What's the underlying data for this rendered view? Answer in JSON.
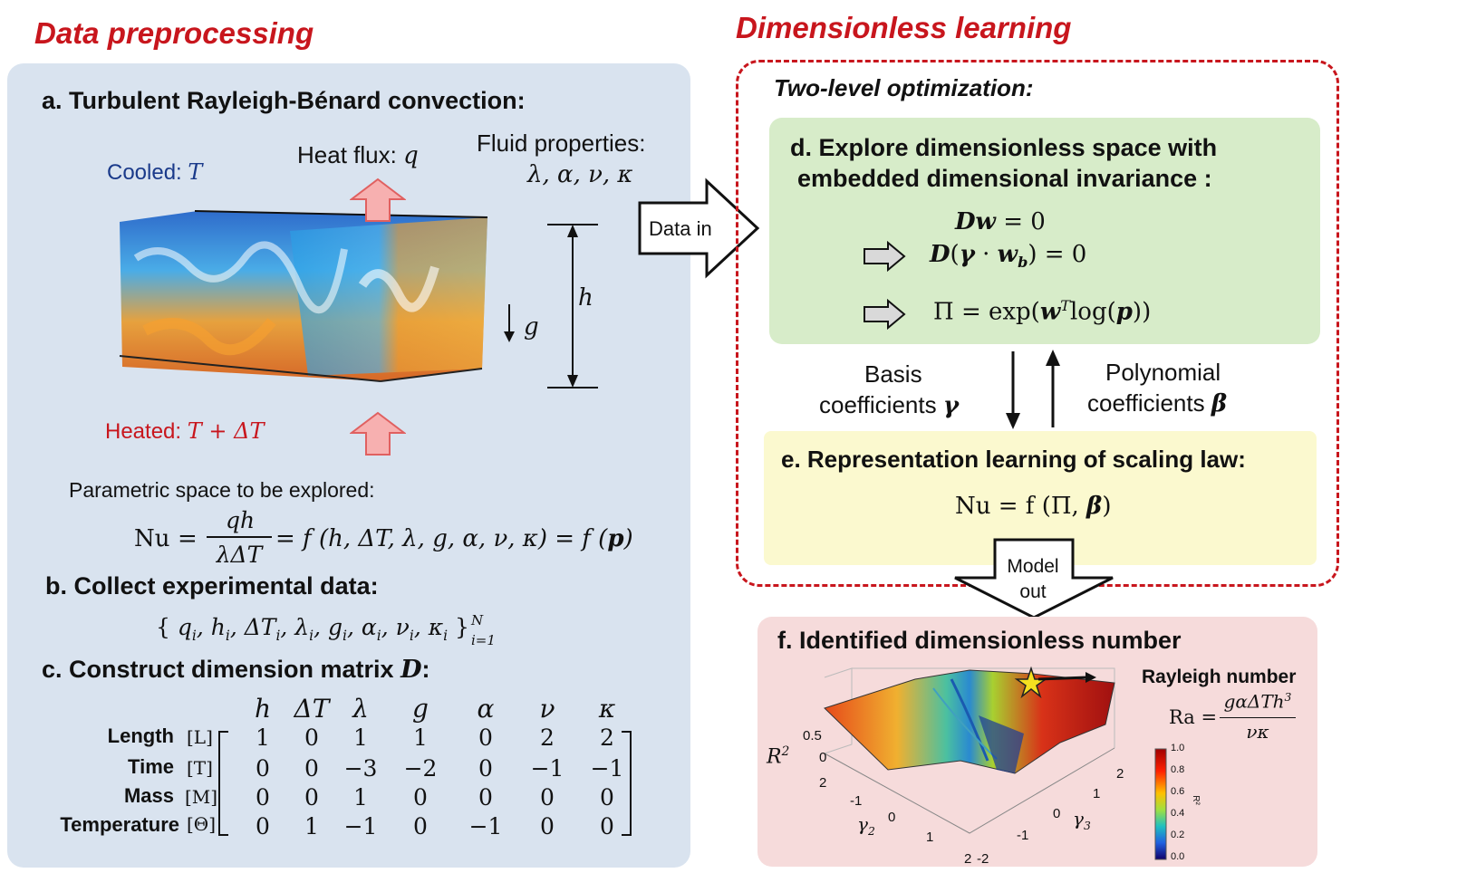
{
  "titles": {
    "left": "Data preprocessing",
    "right": "Dimensionless  learning",
    "two_level": "Two-level optimization:"
  },
  "panel_a": {
    "heading": "a. Turbulent Rayleigh-Bénard convection:",
    "cooled_label": "Cooled: ",
    "cooled_var": "T",
    "heat_flux_label": "Heat flux: ",
    "heat_flux_var": "q",
    "fluid_label": "Fluid properties:",
    "fluid_vars": "λ, α, ν, κ",
    "height_var": "h",
    "gravity_var": "g",
    "heated_label": "Heated: ",
    "heated_var": "T + ΔT",
    "param_label": "Parametric space to be explored:",
    "nu": "Nu",
    "num": "qh",
    "den": "λΔT",
    "rhs": "= f (h, ΔT, λ, g, α, ν, κ) = f (",
    "p": "p",
    ")": ")"
  },
  "panel_b": {
    "heading": "b. Collect experimental data:",
    "set_left": "{ ",
    "set_right": " }",
    "sub_label": "i=1",
    "sup_label": "N"
  },
  "panel_c": {
    "heading": "c. Construct dimension matrix ",
    "heading_var": "D",
    "heading_end": ":",
    "columns": [
      "h",
      "ΔT",
      "λ",
      "g",
      "α",
      "ν",
      "κ"
    ],
    "rows": [
      {
        "name": "Length",
        "unit": "[L]",
        "values": [
          "1",
          "0",
          "1",
          "1",
          "0",
          "2",
          "2"
        ]
      },
      {
        "name": "Time",
        "unit": "[T]",
        "values": [
          "0",
          "0",
          "−3",
          "−2",
          "0",
          "−1",
          "−1"
        ]
      },
      {
        "name": "Mass",
        "unit": "[M]",
        "values": [
          "0",
          "0",
          "1",
          "0",
          "0",
          "0",
          "0"
        ]
      },
      {
        "name": "Temperature",
        "unit": "[Θ]",
        "values": [
          "0",
          "1",
          "−1",
          "0",
          "−1",
          "0",
          "0"
        ]
      }
    ]
  },
  "arrows": {
    "data_in": "Data in",
    "model_out_1": "Model",
    "model_out_2": "out"
  },
  "panel_d": {
    "line1": "d. Explore dimensionless space with",
    "line2": "embedded dimensional invariance :",
    "eq1": "= 0",
    "eq2": "= 0",
    "eq3": "Π = exp(",
    "eq3_log": "log(",
    ")": "))"
  },
  "coefficients": {
    "basis_1": "Basis",
    "basis_2": "coefficients ",
    "basis_var": "γ",
    "poly_1": "Polynomial",
    "poly_2": "coefficients ",
    "poly_var": "β"
  },
  "panel_e": {
    "heading": "e. Representation learning of scaling law:",
    "eq": "Nu = f (Π, ",
    "eq_end": ")"
  },
  "panel_f": {
    "heading": "f. Identified dimensionless number",
    "rayleigh_label": "Rayleigh number",
    "ra": "Ra =",
    "ra_num": "gαΔTh",
    "ra_num_sup": "3",
    "ra_den": "νκ",
    "z_label": "R",
    "z_label_sup": "2",
    "z_ticks": [
      "0.5",
      "0"
    ],
    "gamma2_ticks": [
      "2",
      "-1",
      "0",
      "1",
      "2"
    ],
    "gamma3_ticks": [
      "2",
      "1",
      "0",
      "-1",
      "-2"
    ],
    "gamma2_label": "γ",
    "gamma2_sub": "2",
    "gamma3_label": "γ",
    "gamma3_sub": "3",
    "colorbar_ticks": [
      "1.0",
      "0.8",
      "0.6",
      "0.4",
      "0.2",
      "0.0"
    ],
    "colorbar_label": "R²"
  },
  "colors": {
    "accent_red": "#c8161d",
    "cooled_blue": "#1a3a8a",
    "heated_red": "#c8161d",
    "arrow_pink": "#f4a0a0"
  }
}
